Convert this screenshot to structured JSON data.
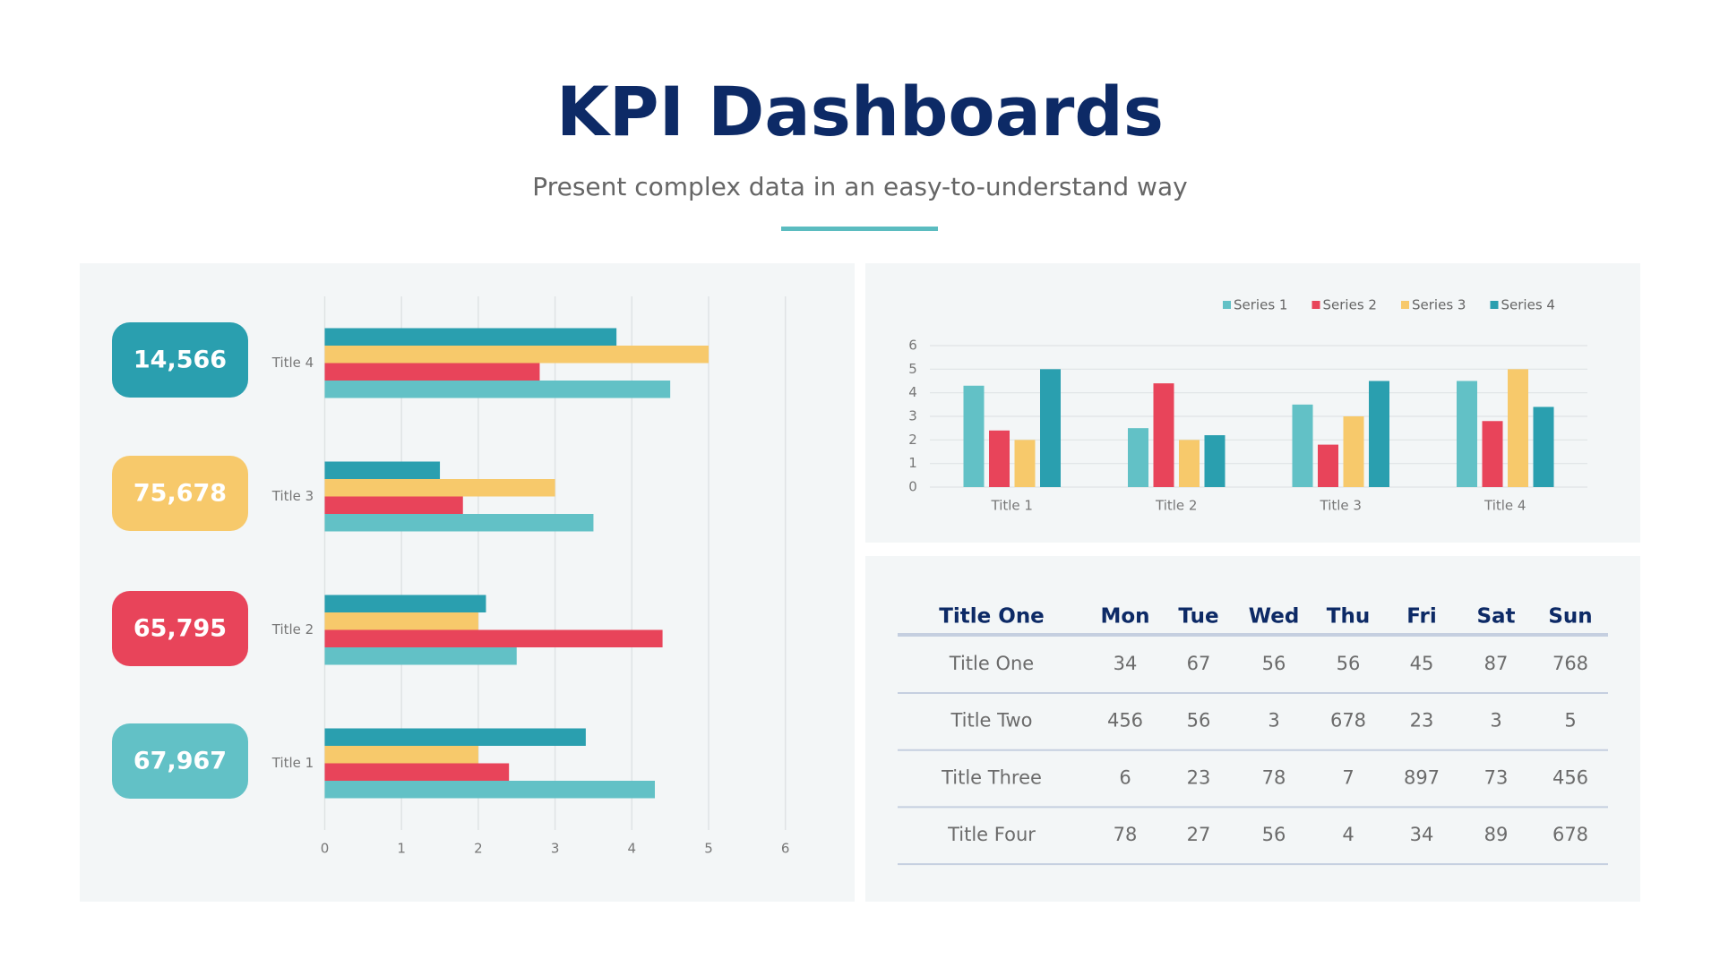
{
  "header": {
    "title": "KPI Dashboards",
    "subtitle": "Present complex data in an easy-to-understand way"
  },
  "kpis": [
    {
      "value": "14,566",
      "color": "#2a9faf"
    },
    {
      "value": "75,678",
      "color": "#f7c96b"
    },
    {
      "value": "65,795",
      "color": "#e8445a"
    },
    {
      "value": "67,967",
      "color": "#62c1c6"
    }
  ],
  "chart_data": [
    {
      "type": "barh",
      "categories": [
        "Title 1",
        "Title 2",
        "Title 3",
        "Title 4"
      ],
      "series": [
        {
          "name": "Series 1",
          "color": "#62c1c6",
          "values": [
            4.3,
            2.5,
            3.5,
            4.5
          ]
        },
        {
          "name": "Series 2",
          "color": "#e8445a",
          "values": [
            2.4,
            4.4,
            1.8,
            2.8
          ]
        },
        {
          "name": "Series 3",
          "color": "#f7c96b",
          "values": [
            2,
            2,
            3,
            5
          ]
        },
        {
          "name": "Series 4",
          "color": "#2a9faf",
          "values": [
            3.4,
            2.1,
            1.5,
            3.8
          ]
        }
      ],
      "xlim": [
        0,
        6
      ],
      "xticks": [
        0,
        1,
        2,
        3,
        4,
        5,
        6
      ],
      "grid": true,
      "legend": false
    },
    {
      "type": "bar",
      "categories": [
        "Title 1",
        "Title 2",
        "Title 3",
        "Title 4"
      ],
      "series": [
        {
          "name": "Series 1",
          "color": "#62c1c6",
          "values": [
            4.3,
            2.5,
            3.5,
            4.5
          ]
        },
        {
          "name": "Series 2",
          "color": "#e8445a",
          "values": [
            2.4,
            4.4,
            1.8,
            2.8
          ]
        },
        {
          "name": "Series 3",
          "color": "#f7c96b",
          "values": [
            2,
            2,
            3,
            5
          ]
        },
        {
          "name": "Series 4",
          "color": "#2a9faf",
          "values": [
            5,
            2.2,
            4.5,
            3.4
          ]
        }
      ],
      "ylim": [
        0,
        6
      ],
      "yticks": [
        0,
        1,
        2,
        3,
        4,
        5,
        6
      ],
      "grid": true,
      "legend": "top-right"
    }
  ],
  "table": {
    "header": [
      "Title One",
      "Mon",
      "Tue",
      "Wed",
      "Thu",
      "Fri",
      "Sat",
      "Sun"
    ],
    "rows": [
      [
        "Title One",
        34,
        67,
        56,
        56,
        45,
        87,
        768
      ],
      [
        "Title Two",
        456,
        56,
        3,
        678,
        23,
        3,
        5
      ],
      [
        "Title Three",
        6,
        23,
        78,
        7,
        897,
        73,
        456
      ],
      [
        "Title Four",
        78,
        27,
        56,
        4,
        34,
        89,
        678
      ]
    ]
  }
}
